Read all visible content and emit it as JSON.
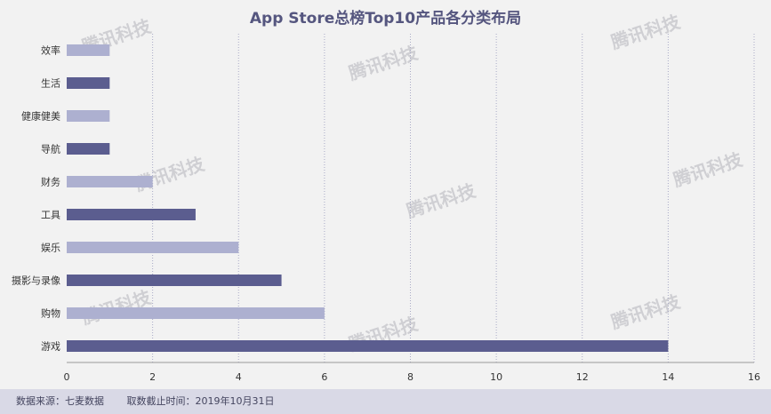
{
  "chart_data": {
    "type": "bar",
    "orientation": "horizontal",
    "title": "App Store总榜Top10产品各分类布局",
    "categories": [
      "效率",
      "生活",
      "健康健美",
      "导航",
      "财务",
      "工具",
      "娱乐",
      "摄影与录像",
      "购物",
      "游戏"
    ],
    "values": [
      1,
      1,
      1,
      1,
      2,
      3,
      4,
      5,
      6,
      14
    ],
    "xlim": [
      0,
      16
    ],
    "xticks": [
      "0",
      "2",
      "4",
      "6",
      "8",
      "10",
      "12",
      "14",
      "16"
    ],
    "grid": "vertical dotted",
    "colors": {
      "dark": "#5b5d8f",
      "light": "#adb0d0"
    }
  },
  "watermark": "腾讯科技",
  "footer": {
    "source": "数据来源：七麦数据",
    "date": "取数截止时间：2019年10月31日"
  }
}
